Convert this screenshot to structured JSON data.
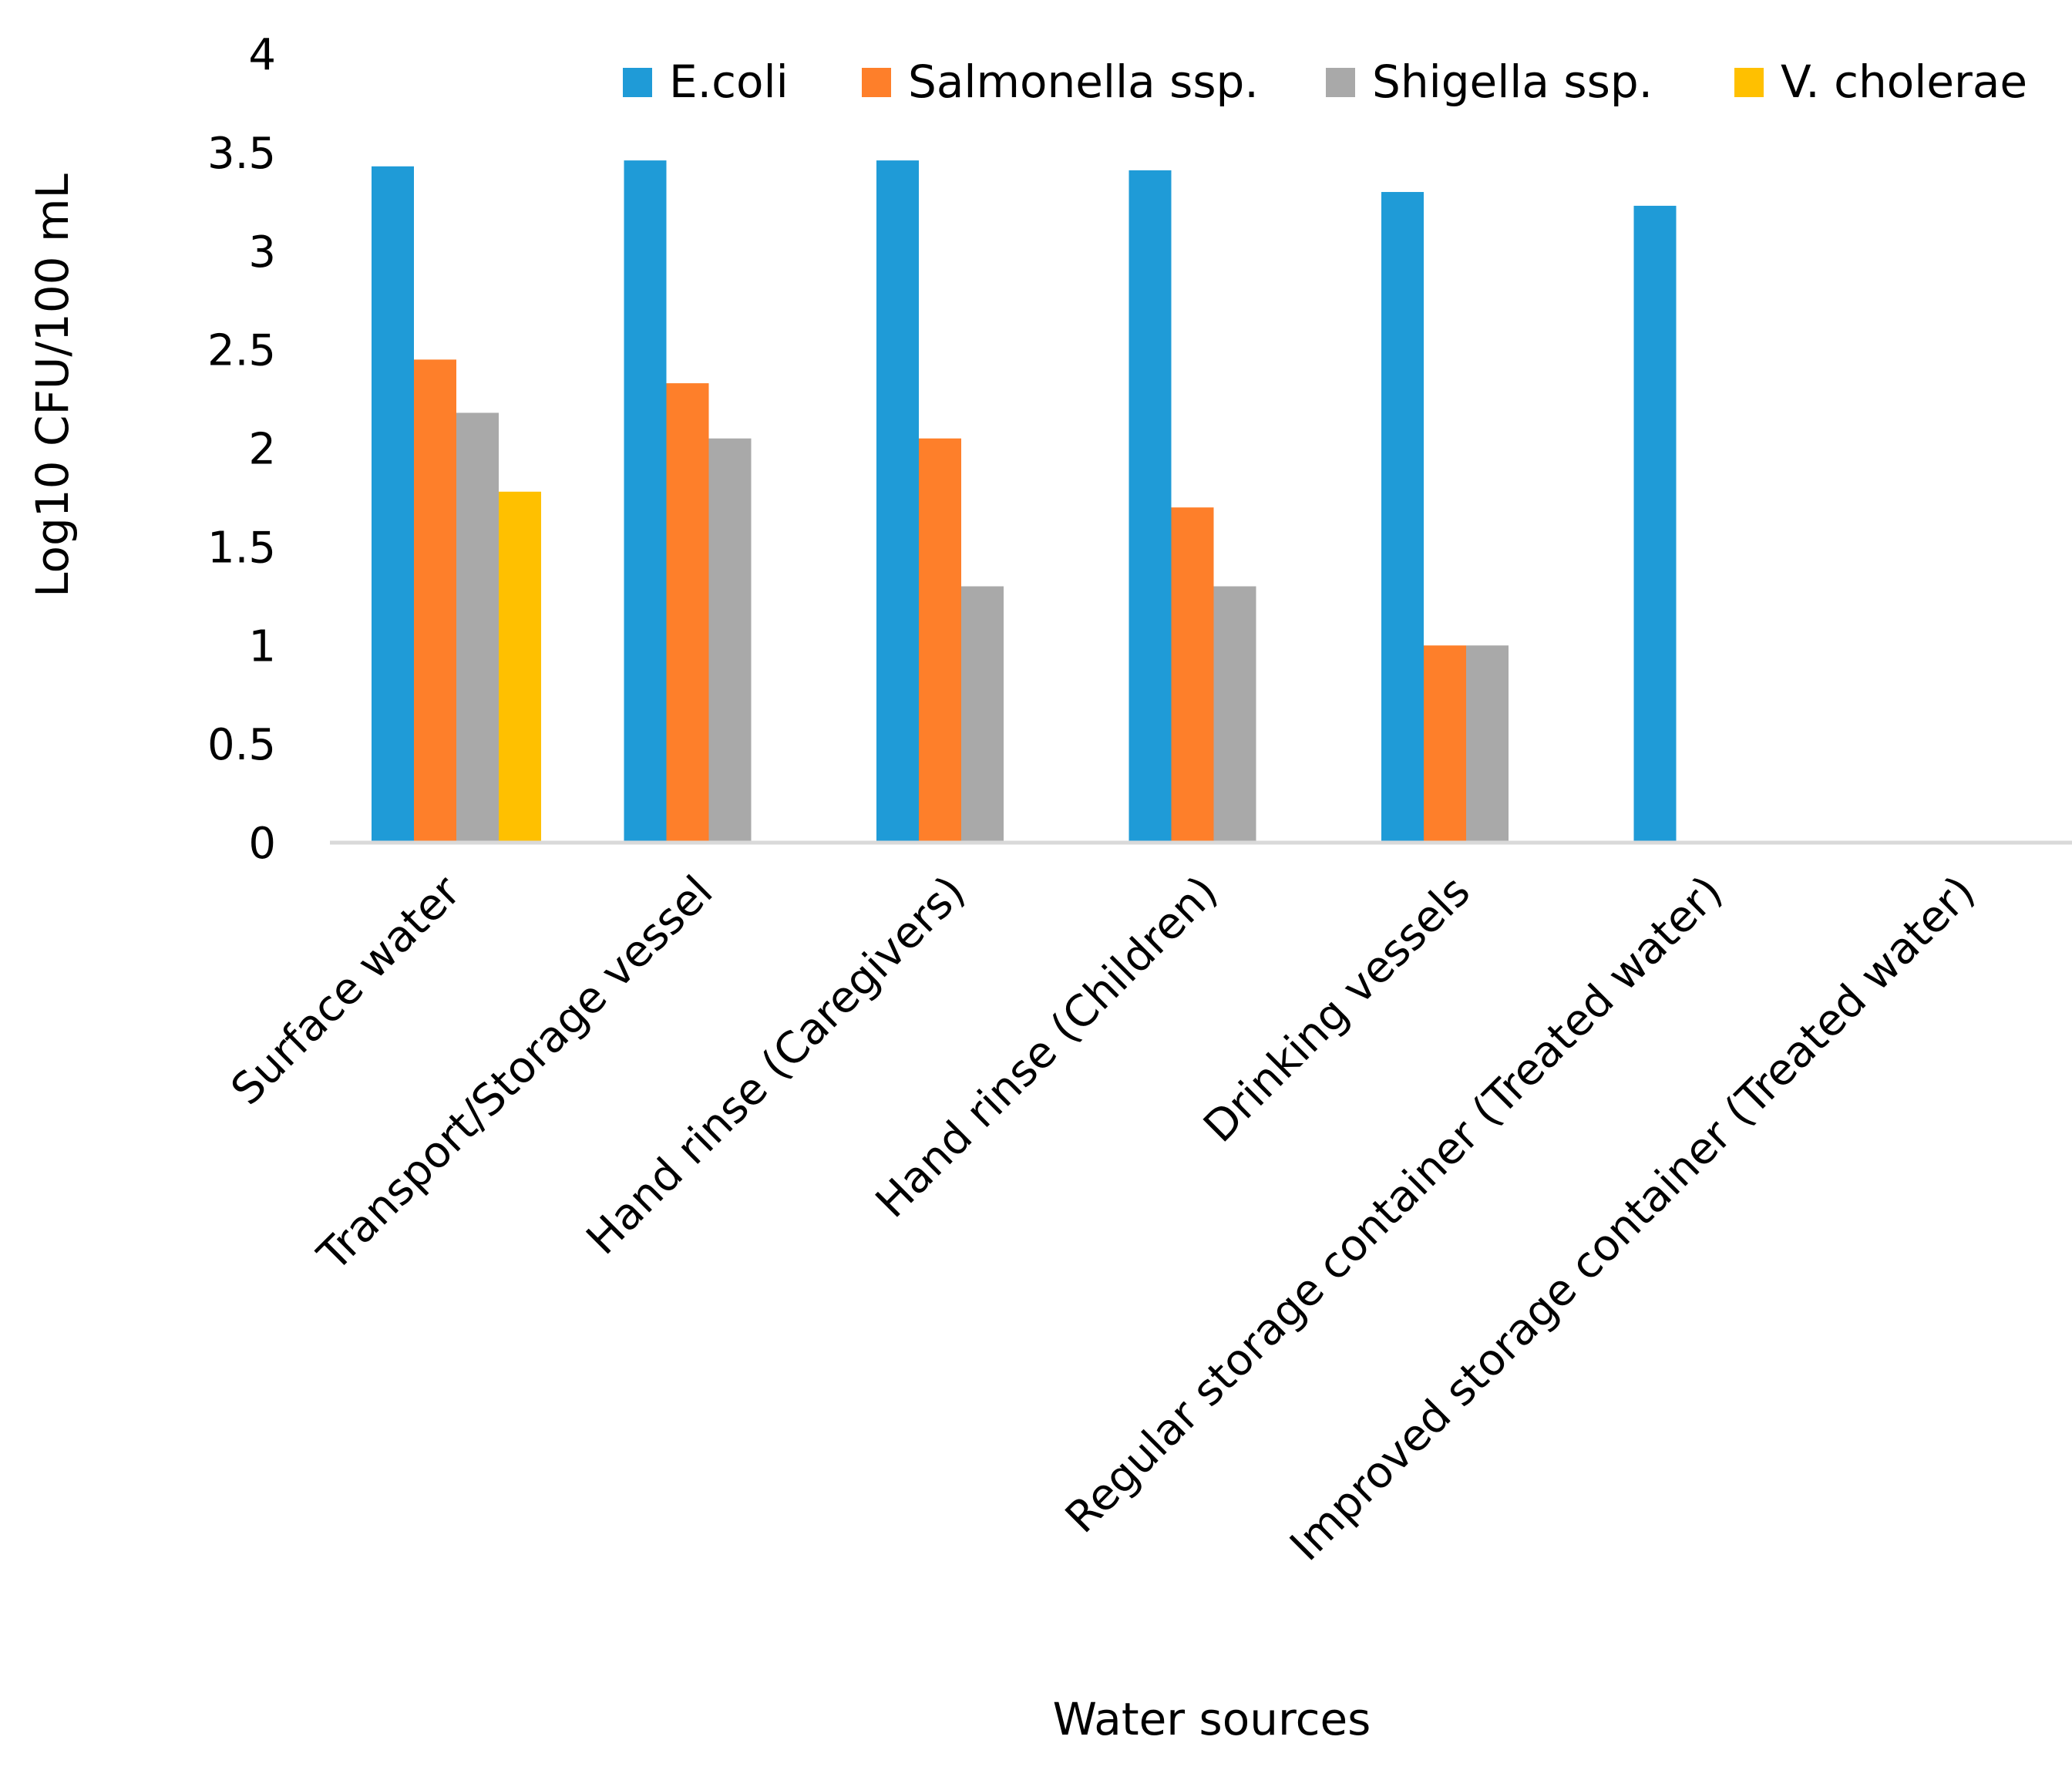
{
  "chart_data": {
    "type": "bar",
    "title": "",
    "xlabel": "Water sources",
    "ylabel": "Log10 CFU/100 mL",
    "ylim": [
      0,
      4
    ],
    "yticks": [
      "0",
      "0.5",
      "1",
      "1.5",
      "2",
      "2.5",
      "3",
      "3.5",
      "4"
    ],
    "grid": false,
    "legend_position": "top-right",
    "categories": [
      "Surface water",
      "Transport/Storage vessel",
      "Hand rinse (Caregivers)",
      "Hand rinse (Children)",
      "Drinking vessels",
      "Regular storage container (Treated water)",
      "Improved storage container (Treated water)"
    ],
    "series": [
      {
        "name": "E.coli",
        "color": "#1F9BD7",
        "values": [
          3.43,
          3.46,
          3.46,
          3.41,
          3.3,
          3.23,
          0
        ]
      },
      {
        "name": "Salmonella ssp.",
        "color": "#FE7F2A",
        "values": [
          2.45,
          2.33,
          2.05,
          1.7,
          1.0,
          0,
          0
        ]
      },
      {
        "name": "Shigella ssp.",
        "color": "#A9A9A9",
        "values": [
          2.18,
          2.05,
          1.3,
          1.3,
          1.0,
          0,
          0
        ]
      },
      {
        "name": "V. cholerae",
        "color": "#FFC000",
        "values": [
          1.78,
          0,
          0,
          0,
          0,
          0,
          0
        ]
      }
    ]
  }
}
